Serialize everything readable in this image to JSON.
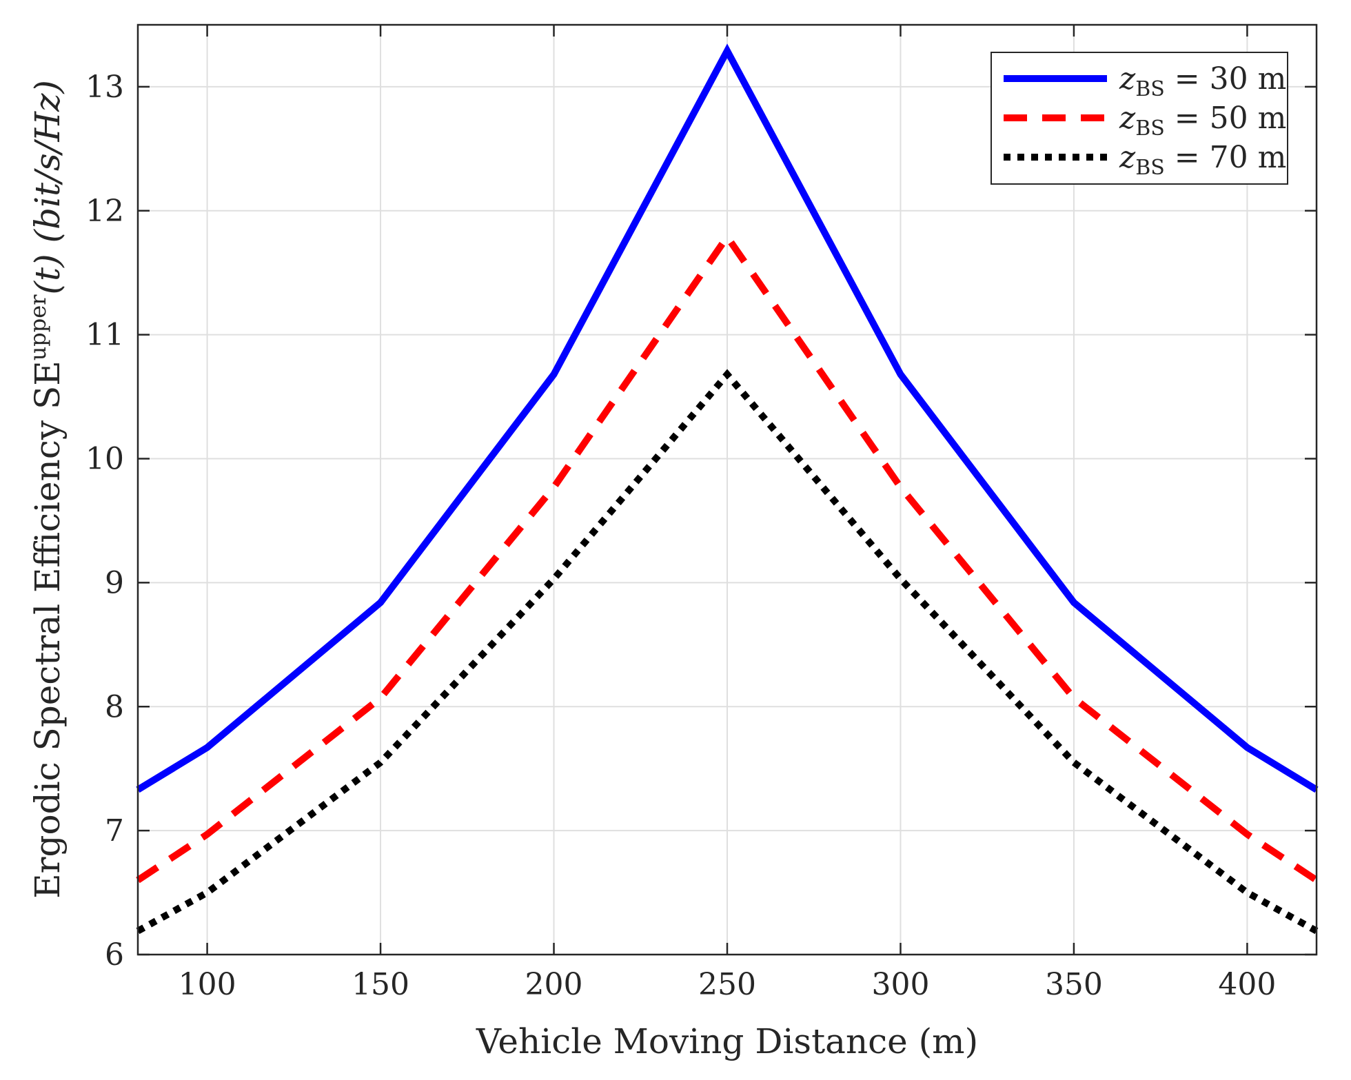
{
  "chart_data": {
    "type": "line",
    "title": "",
    "xlabel": "Vehicle Moving Distance (m)",
    "ylabel": {
      "prefix": "Ergodic Spectral Efficiency SE",
      "superscript": "upper",
      "suffix": "(t) (bit/s/Hz)"
    },
    "xlim": [
      80,
      420
    ],
    "ylim": [
      6,
      13.5
    ],
    "xticks": [
      100,
      150,
      200,
      250,
      300,
      350,
      400
    ],
    "yticks": [
      6,
      7,
      8,
      9,
      10,
      11,
      12,
      13
    ],
    "grid": true,
    "legend_position": "top-right",
    "x": [
      80,
      100,
      150,
      200,
      250,
      300,
      350,
      400,
      420
    ],
    "series": [
      {
        "name": "z_BS = 30 m",
        "legend": {
          "var": "z",
          "sub": "BS",
          "rest": " = 30 m"
        },
        "color": "#0000ff",
        "dash": "solid",
        "values": [
          7.33,
          7.67,
          8.84,
          10.68,
          13.29,
          10.68,
          8.84,
          7.67,
          7.33
        ]
      },
      {
        "name": "z_BS = 50 m",
        "legend": {
          "var": "z",
          "sub": "BS",
          "rest": " = 50 m"
        },
        "color": "#ff0000",
        "dash": "dashed",
        "values": [
          6.6,
          6.97,
          8.07,
          9.77,
          11.79,
          9.77,
          8.07,
          6.97,
          6.6
        ]
      },
      {
        "name": "z_BS = 70 m",
        "legend": {
          "var": "z",
          "sub": "BS",
          "rest": " = 70 m"
        },
        "color": "#000000",
        "dash": "dotted",
        "values": [
          6.19,
          6.5,
          7.55,
          9.03,
          10.68,
          9.03,
          7.55,
          6.5,
          6.19
        ]
      }
    ]
  }
}
